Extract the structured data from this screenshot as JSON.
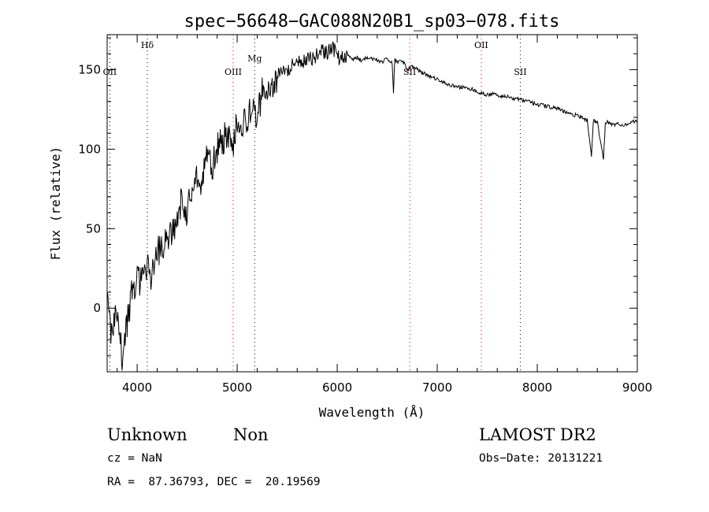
{
  "chart_data": {
    "type": "line",
    "title": "spec−56648−GAC088N20B1_sp03−078.fits",
    "xlabel": "Wavelength (Å)",
    "ylabel": "Flux (relative)",
    "xlim": [
      3700,
      9000
    ],
    "ylim": [
      -40,
      172
    ],
    "xticks": [
      4000,
      5000,
      6000,
      7000,
      8000,
      9000
    ],
    "yticks": [
      0,
      50,
      100,
      150
    ],
    "x_minor_step": 200,
    "y_minor_step": 10,
    "grid": false,
    "line_color": "#000000",
    "marker_color": "#000000",
    "spectrum": {
      "x": [
        3700,
        3750,
        3800,
        3850,
        3900,
        3950,
        4000,
        4050,
        4100,
        4150,
        4200,
        4250,
        4300,
        4350,
        4400,
        4450,
        4500,
        4550,
        4600,
        4650,
        4700,
        4750,
        4800,
        4850,
        4900,
        4950,
        5000,
        5050,
        5100,
        5150,
        5200,
        5250,
        5300,
        5350,
        5400,
        5450,
        5500,
        5550,
        5600,
        5650,
        5700,
        5750,
        5800,
        5850,
        5900,
        5950,
        6000,
        6050,
        6100,
        6150,
        6200,
        6250,
        6300,
        6350,
        6400,
        6450,
        6500,
        6550,
        6563,
        6575,
        6600,
        6650,
        6700,
        6750,
        6800,
        6850,
        6900,
        6950,
        7000,
        7050,
        7100,
        7150,
        7200,
        7250,
        7300,
        7350,
        7400,
        7450,
        7500,
        7550,
        7600,
        7650,
        7700,
        7750,
        7800,
        7850,
        7900,
        7950,
        8000,
        8050,
        8100,
        8150,
        8200,
        8250,
        8300,
        8350,
        8400,
        8450,
        8500,
        8542,
        8560,
        8600,
        8662,
        8680,
        8700,
        8750,
        8800,
        8850,
        8900,
        8950,
        9000
      ],
      "y": [
        5,
        -20,
        0,
        -30,
        -10,
        10,
        20,
        15,
        25,
        20,
        38,
        35,
        45,
        50,
        55,
        70,
        60,
        75,
        85,
        80,
        95,
        88,
        100,
        105,
        110,
        100,
        118,
        115,
        120,
        125,
        118,
        138,
        140,
        142,
        145,
        150,
        148,
        152,
        155,
        153,
        158,
        156,
        160,
        162,
        160,
        165,
        158,
        157,
        160,
        156,
        158,
        155,
        158,
        157,
        156,
        155,
        157,
        154,
        135,
        156,
        155,
        156,
        150,
        152,
        150,
        148,
        147,
        145,
        144,
        142,
        141,
        140,
        139,
        139,
        138,
        138,
        136,
        135,
        134,
        135,
        134,
        133,
        133,
        132,
        132,
        131,
        130,
        129,
        128,
        128,
        127,
        126,
        126,
        124,
        123,
        122,
        121,
        120,
        118,
        95,
        118,
        117,
        94,
        116,
        117,
        115,
        116,
        115,
        116,
        117,
        118
      ]
    },
    "lines": [
      {
        "label": "OII",
        "x": 3727,
        "color": "#000000"
      },
      {
        "label": "Hδ",
        "x": 4102,
        "color": "#000000"
      },
      {
        "label": "OIII",
        "x": 4960,
        "color": "#ff0000"
      },
      {
        "label": "Mg",
        "x": 5175,
        "color": "#000000"
      },
      {
        "label": "SII",
        "x": 6725,
        "color": "#ff0000"
      },
      {
        "label": "OII",
        "x": 7440,
        "color": "#ff0000"
      },
      {
        "label": "SII",
        "x": 7830,
        "color": "#000000"
      }
    ]
  },
  "info": {
    "class_label": "Unknown",
    "subclass_label": "Non",
    "survey": "LAMOST DR2",
    "cz": "cz = NaN",
    "obs_date": "Obs−Date: 20131221",
    "coords": "RA =  87.36793, DEC =  20.19569"
  }
}
